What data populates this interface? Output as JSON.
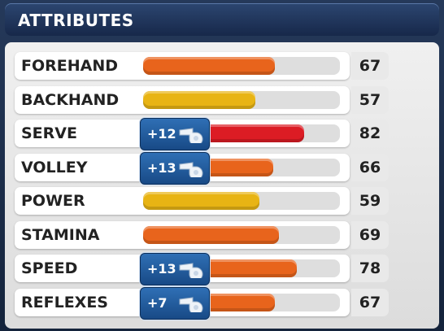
{
  "header": {
    "title": "ATTRIBUTES"
  },
  "attributes": [
    {
      "name": "FOREHAND",
      "value": 67,
      "bonus": null,
      "color": "#e8641c"
    },
    {
      "name": "BACKHAND",
      "value": 57,
      "bonus": null,
      "color": "#e8b414"
    },
    {
      "name": "SERVE",
      "value": 82,
      "bonus": "+12",
      "color": "#dc1c24"
    },
    {
      "name": "VOLLEY",
      "value": 66,
      "bonus": "+13",
      "color": "#e8641c"
    },
    {
      "name": "POWER",
      "value": 59,
      "bonus": null,
      "color": "#e8b414"
    },
    {
      "name": "STAMINA",
      "value": 69,
      "bonus": null,
      "color": "#e8641c"
    },
    {
      "name": "SPEED",
      "value": 78,
      "bonus": "+13",
      "color": "#e8641c"
    },
    {
      "name": "REFLEXES",
      "value": 67,
      "bonus": "+7",
      "color": "#e8641c"
    }
  ]
}
